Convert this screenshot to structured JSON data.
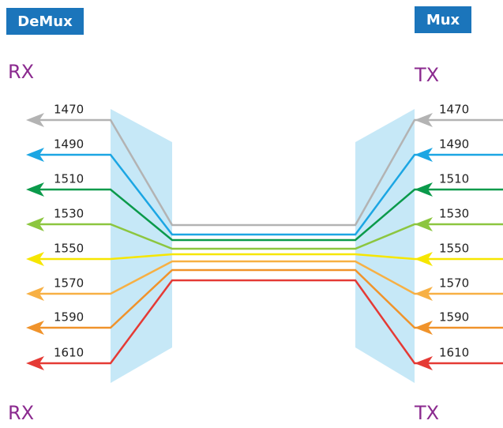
{
  "header": {
    "demux": "DeMux",
    "mux": "Mux"
  },
  "left": {
    "top": "RX",
    "bottom": "RX"
  },
  "right": {
    "top": "TX",
    "bottom": "TX"
  },
  "channels": [
    {
      "label": "1470",
      "color": "#b3b3b3"
    },
    {
      "label": "1490",
      "color": "#1ca6e3"
    },
    {
      "label": "1510",
      "color": "#0b9a4b"
    },
    {
      "label": "1530",
      "color": "#8cc63f"
    },
    {
      "label": "1550",
      "color": "#f6e600"
    },
    {
      "label": "1570",
      "color": "#f7b044"
    },
    {
      "label": "1590",
      "color": "#f0932b"
    },
    {
      "label": "1610",
      "color": "#e53a35"
    }
  ]
}
